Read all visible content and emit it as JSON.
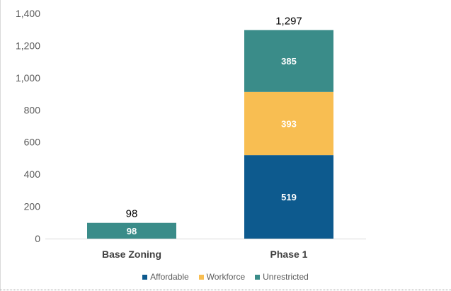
{
  "chart_data": {
    "type": "bar",
    "stacked": true,
    "categories": [
      "Base Zoning",
      "Phase 1"
    ],
    "series": [
      {
        "name": "Affordable",
        "values": [
          0,
          519
        ],
        "color": "#0d5a8e"
      },
      {
        "name": "Workforce",
        "values": [
          0,
          393
        ],
        "color": "#f8be52"
      },
      {
        "name": "Unrestricted",
        "values": [
          98,
          385
        ],
        "color": "#3a8c89"
      }
    ],
    "totals": [
      98,
      1297
    ],
    "total_labels": [
      "98",
      "1,297"
    ],
    "segment_labels": [
      [
        null,
        null,
        "98"
      ],
      [
        "519",
        "393",
        "385"
      ]
    ],
    "y_ticks": [
      0,
      200,
      400,
      600,
      800,
      1000,
      1200,
      1400
    ],
    "y_tick_labels": [
      "0",
      "200",
      "400",
      "600",
      "800",
      "1,000",
      "1,200",
      "1,400"
    ],
    "ylim": [
      0,
      1400
    ],
    "grid": false,
    "legend_position": "bottom"
  }
}
